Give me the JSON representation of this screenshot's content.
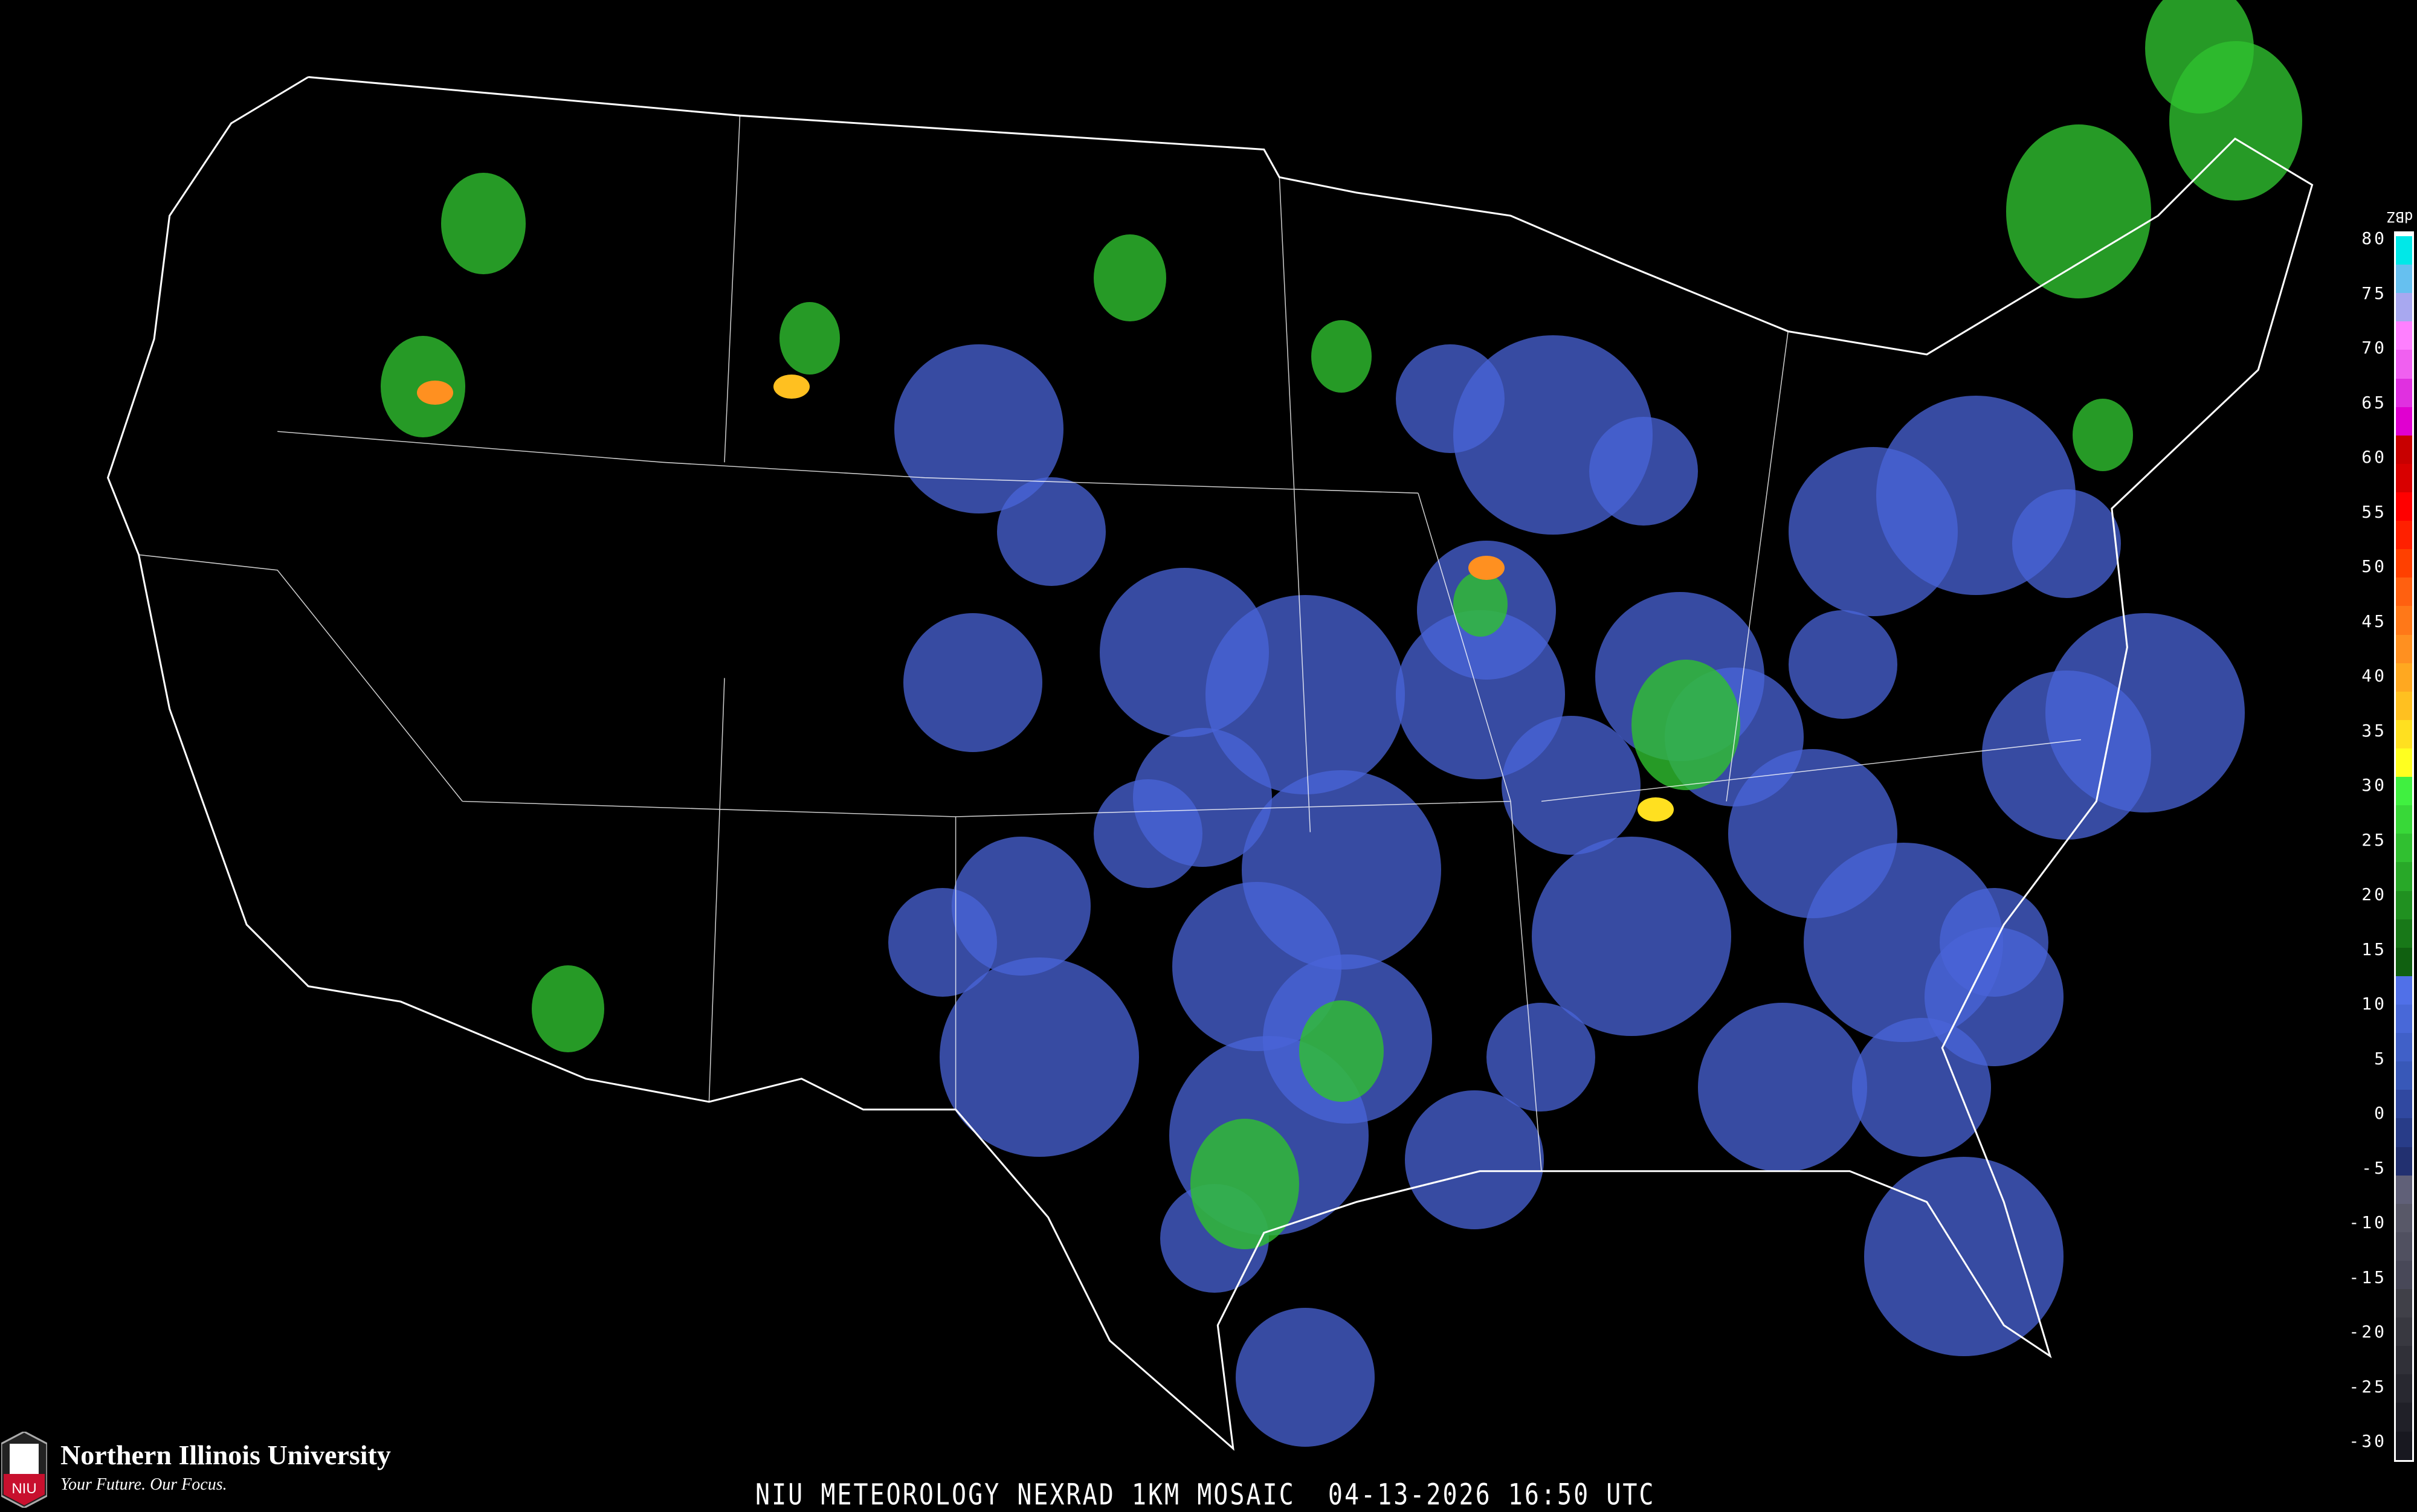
{
  "map": {
    "caption": "NIU METEOROLOGY NEXRAD 1KM MOSAIC  04-13-2026 16:50 UTC",
    "background_color": "#000000",
    "boundary_color": "#ffffff",
    "county_color": "#555555",
    "road_color": "#8b3a1a"
  },
  "legend": {
    "unit": "dBZ",
    "ticks": [
      "80",
      "75",
      "70",
      "65",
      "60",
      "55",
      "50",
      "45",
      "40",
      "35",
      "30",
      "25",
      "20",
      "15",
      "10",
      "5",
      "0",
      "-5",
      "-10",
      "-15",
      "-20",
      "-25",
      "-30"
    ],
    "colors": [
      "#00e8e8",
      "#66c0f0",
      "#a8a8f0",
      "#ff80ff",
      "#f060f0",
      "#e030e0",
      "#e000d0",
      "#c80000",
      "#d80000",
      "#ff0000",
      "#ff2000",
      "#ff4000",
      "#ff6010",
      "#ff7818",
      "#ff9020",
      "#ffa820",
      "#ffc020",
      "#ffe020",
      "#ffff20",
      "#40f040",
      "#38d838",
      "#30c030",
      "#28a828",
      "#209020",
      "#187818",
      "#106010",
      "#5070e8",
      "#4868d8",
      "#4060c8",
      "#3858b8",
      "#3048a0",
      "#283c88",
      "#223070",
      "#606078",
      "#585868",
      "#505060",
      "#484858",
      "#404048",
      "#383840",
      "#303038",
      "#282830",
      "#202028",
      "#181820"
    ]
  },
  "logo": {
    "name": "Northern Illinois University",
    "tagline": "Your Future. Our Focus.",
    "mark_text": "NIU",
    "brand_color": "#c8102e"
  }
}
